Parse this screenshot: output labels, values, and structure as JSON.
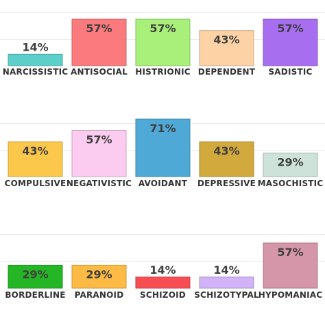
{
  "chart_data": [
    {
      "type": "bar",
      "categories": [
        "NARCISSISTIC",
        "ANTISOCIAL",
        "HISTRIONIC",
        "DEPENDENT",
        "SADISTIC"
      ],
      "values": [
        14,
        57,
        57,
        43,
        57
      ],
      "value_labels": [
        "14%",
        "57%",
        "57%",
        "43%",
        "57%"
      ],
      "colors": [
        "#5ccfcb",
        "#fb7a7d",
        "#a9f07a",
        "#fdd3a6",
        "#a76ef0"
      ],
      "ylim": [
        0,
        57
      ],
      "grid": true,
      "legend": "none"
    },
    {
      "type": "bar",
      "categories": [
        "COMPULSIVE",
        "NEGATIVISTIC",
        "AVOIDANT",
        "DEPRESSIVE",
        "MASOCHISTIC"
      ],
      "values": [
        43,
        57,
        71,
        43,
        29
      ],
      "value_labels": [
        "43%",
        "57%",
        "71%",
        "43%",
        "29%"
      ],
      "colors": [
        "#fcc84c",
        "#fccbf0",
        "#4fa9d6",
        "#d1a93d",
        "#cde3da"
      ],
      "ylim": [
        0,
        71
      ],
      "grid": true,
      "legend": "none"
    },
    {
      "type": "bar",
      "categories": [
        "BORDERLINE",
        "PARANOID",
        "SCHIZOID",
        "SCHIZOTYPAL",
        "HYPOMANIAC"
      ],
      "values": [
        29,
        29,
        14,
        14,
        57
      ],
      "value_labels": [
        "29%",
        "29%",
        "14%",
        "14%",
        "57%"
      ],
      "colors": [
        "#24b624",
        "#fdbb45",
        "#f84d52",
        "#d2b3f9",
        "#d496a8"
      ],
      "ylim": [
        0,
        57
      ],
      "grid": true,
      "legend": "none"
    }
  ]
}
